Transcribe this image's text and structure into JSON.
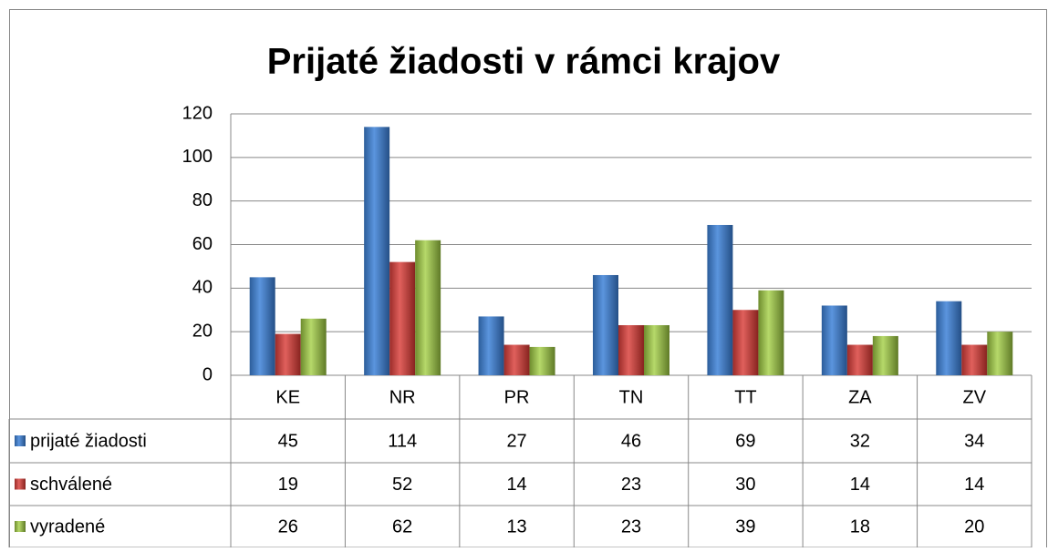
{
  "chart_data": {
    "type": "bar",
    "title": "Prijaté žiadosti v rámci krajov",
    "categories": [
      "KE",
      "NR",
      "PR",
      "TN",
      "TT",
      "ZA",
      "ZV"
    ],
    "series": [
      {
        "name": "prijaté žiadosti",
        "color": "#4f81bd",
        "values": [
          45,
          114,
          27,
          46,
          69,
          32,
          34
        ]
      },
      {
        "name": "schválené",
        "color": "#c0504d",
        "values": [
          19,
          52,
          14,
          23,
          30,
          14,
          14
        ]
      },
      {
        "name": "vyradené",
        "color": "#9bbb59",
        "values": [
          26,
          62,
          13,
          23,
          39,
          18,
          20
        ]
      }
    ],
    "ylim": [
      0,
      120
    ],
    "yticks": [
      0,
      20,
      40,
      60,
      80,
      100,
      120
    ],
    "grid": true
  }
}
